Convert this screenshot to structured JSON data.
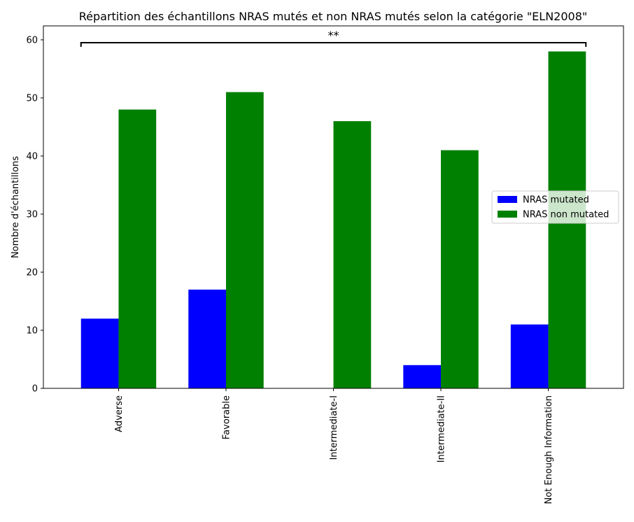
{
  "chart_data": {
    "type": "bar",
    "title": "Répartition des échantillons NRAS mutés et non NRAS mutés selon la catégorie \"ELN2008\"",
    "xlabel": "",
    "ylabel": "Nombre d'échantillons",
    "categories": [
      "Adverse",
      "Favorable",
      "Intermediate-I",
      "Intermediate-II",
      "Not Enough Information"
    ],
    "series": [
      {
        "name": "NRAS mutated",
        "values": [
          12,
          17,
          0,
          4,
          11
        ],
        "color": "#0000ff"
      },
      {
        "name": "NRAS non mutated",
        "values": [
          48,
          51,
          46,
          41,
          58
        ],
        "color": "#008000"
      }
    ],
    "ylim": [
      0,
      62.4
    ],
    "yticks": [
      0,
      10,
      20,
      30,
      40,
      50,
      60
    ],
    "grid": false,
    "legend_position": "center-right",
    "annotation": {
      "text": "**",
      "from_category": "Adverse",
      "to_category": "Not Enough Information"
    }
  }
}
